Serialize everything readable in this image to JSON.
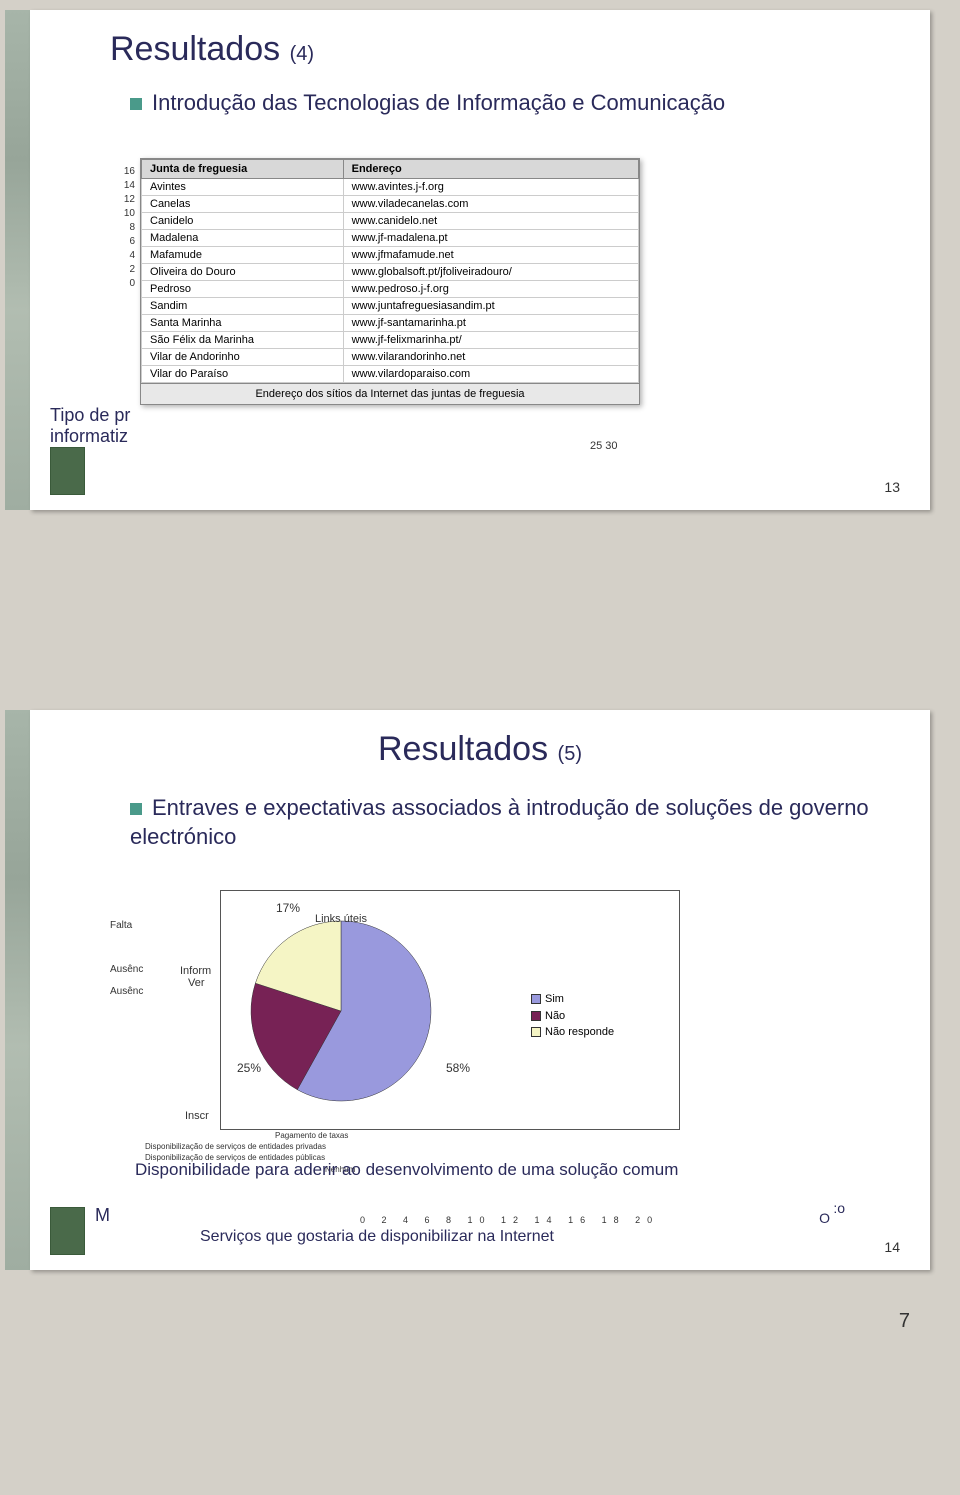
{
  "slide1": {
    "title_main": "Resultados",
    "title_sub": "(4)",
    "bullet": "Introdução das Tecnologias de Informação e Comunicação",
    "y_ticks": [
      "16",
      "14",
      "12",
      "10",
      "8",
      "6",
      "4",
      "2",
      "0"
    ],
    "type_label_line1": "Tipo de pr",
    "type_label_line2": "informatiz",
    "x_ticks": "25      30",
    "page_num": "13",
    "table": {
      "headers": [
        "Junta de freguesia",
        "Endereço"
      ],
      "rows": [
        [
          "Avintes",
          "www.avintes.j-f.org"
        ],
        [
          "Canelas",
          "www.viladecanelas.com"
        ],
        [
          "Canidelo",
          "www.canidelo.net"
        ],
        [
          "Madalena",
          "www.jf-madalena.pt"
        ],
        [
          "Mafamude",
          "www.jfmafamude.net"
        ],
        [
          "Oliveira do Douro",
          "www.globalsoft.pt/jfoliveiradouro/"
        ],
        [
          "Pedroso",
          "www.pedroso.j-f.org"
        ],
        [
          "Sandim",
          "www.juntafreguesiasandim.pt"
        ],
        [
          "Santa Marinha",
          "www.jf-santamarinha.pt"
        ],
        [
          "São Félix da Marinha",
          "www.jf-felixmarinha.pt/"
        ],
        [
          "Vilar de Andorinho",
          "www.vilarandorinho.net"
        ],
        [
          "Vilar do Paraíso",
          "www.vilardoparaiso.com"
        ]
      ],
      "caption": "Endereço dos sítios da Internet das juntas de freguesia"
    }
  },
  "slide2": {
    "title_main": "Resultados",
    "title_sub": "(5)",
    "bullet": "Entraves e expectativas associados à introdução de soluções de governo electrónico",
    "left_labels": [
      "Falta",
      "Ausênc",
      "Ausênc"
    ],
    "mid_labels": [
      "Inform",
      "Ver"
    ],
    "links_label": "Links úteis",
    "pie": {
      "slices": [
        {
          "label": "58%",
          "value": 58,
          "color": "#9999dd"
        },
        {
          "label": "25%",
          "value": 25,
          "color": "#772255"
        },
        {
          "label": "17%",
          "value": 17,
          "color": "#f5f5c5"
        }
      ],
      "legend": [
        {
          "label": "Sim",
          "color": "#9999dd"
        },
        {
          "label": "Não",
          "color": "#772255"
        },
        {
          "label": "Não responde",
          "color": "#f5f5c5"
        }
      ]
    },
    "inscr_label": "Inscr",
    "small_labels": [
      "Pagamento de taxas",
      "Disponibilização de serviços de entidades privadas",
      "Disponibilização de serviços de entidades públicas",
      "Nenhum"
    ],
    "dispo_label": "Disponibilidade para aderir ao desenvolvimento de uma solução comum",
    "m_label": "M",
    "co_label": ":o",
    "x_ticks": "0 2 4 6 8 10 12 14 16 18 20",
    "bottom_caption": "Serviços que gostaria de disponibilizar na Internet",
    "extra_o": "O",
    "page_num": "14"
  },
  "page_footer": "7",
  "colors": {
    "title": "#2a2a5a",
    "bullet_sq": "#4a9a8a",
    "bg": "#d4d0c8"
  }
}
